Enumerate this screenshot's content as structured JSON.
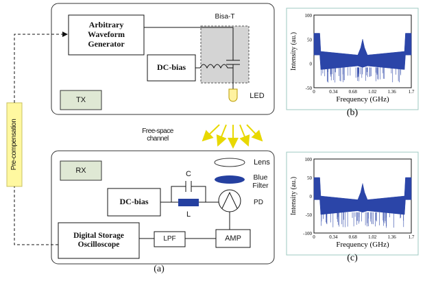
{
  "tx_panel": {
    "awg": "Arbitrary Waveform Generator",
    "bias_tee": "Bisa-T",
    "dc_bias": "DC-bias",
    "tx": "TX",
    "led": "LED"
  },
  "channel": "Free-space channel",
  "rx_panel": {
    "rx": "RX",
    "lens": "Lens",
    "filter": "Blue Filter",
    "pd": "PD",
    "dc_bias": "DC-bias",
    "capacitor": "C",
    "inductor": "L",
    "dso": "Digital Storage Oscilloscope",
    "lpf": "LPF",
    "amp": "AMP"
  },
  "feedback": "Pre-compensation",
  "caption_a": "(a)",
  "spectra": [
    {
      "y_label": "Intensity (au.)",
      "x_label": "Frequency (GHz)",
      "yticks": [
        "100",
        "50",
        "0",
        "-50"
      ],
      "xticks": [
        "0",
        "0.34",
        "0.68",
        "1.02",
        "1.36",
        "1.7"
      ],
      "caption": "(b)"
    },
    {
      "y_label": "Intensity (au.)",
      "x_label": "Frequency (GHz)",
      "yticks": [
        "100",
        "50",
        "0",
        "-50",
        "-100"
      ],
      "xticks": [
        "0",
        "0.34",
        "0.68",
        "1.02",
        "1.36",
        "1.7"
      ],
      "caption": "(c)"
    }
  ]
}
